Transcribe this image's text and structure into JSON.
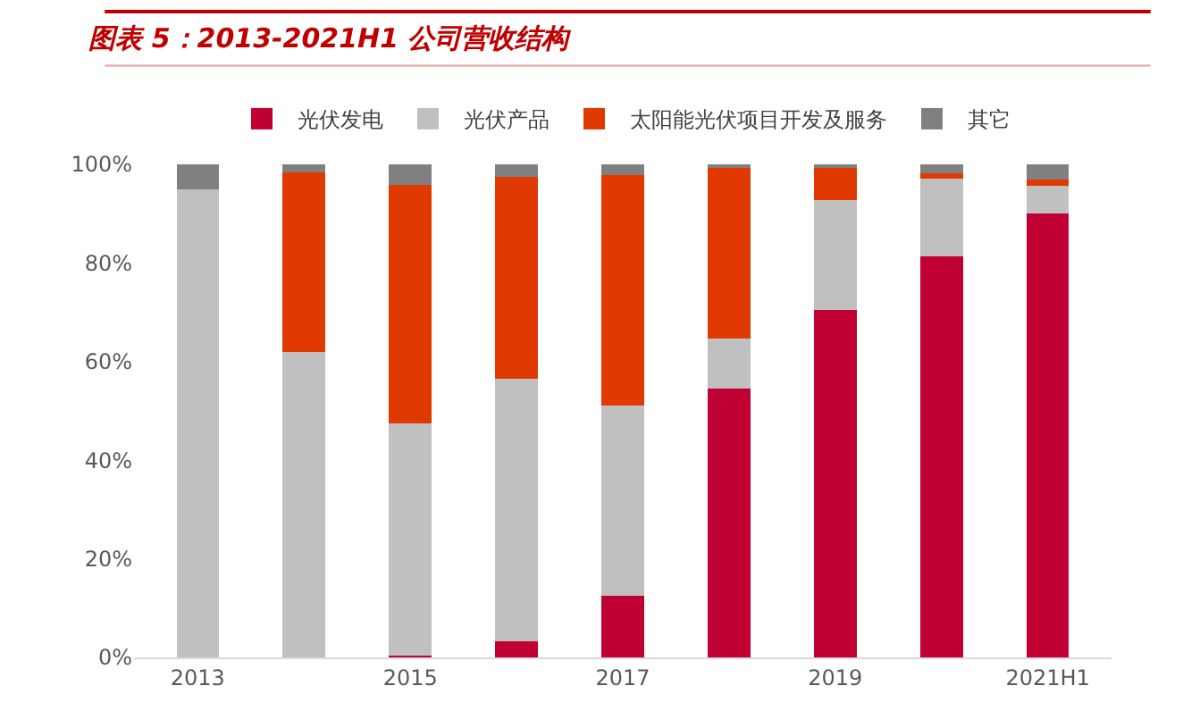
{
  "chart_data": {
    "type": "bar",
    "title": "图表 5：2013-2021H1 公司营收结构",
    "stacked": true,
    "legend": "top",
    "categories": [
      "2013",
      null,
      "2015",
      null,
      "2017",
      null,
      "2019",
      null,
      "2021H1"
    ],
    "ylim": [
      0,
      100
    ],
    "yticks": [
      {
        "value": 0,
        "label": "0%"
      },
      {
        "value": 20,
        "label": "20%"
      },
      {
        "value": 40,
        "label": "40%"
      },
      {
        "value": 60,
        "label": "60%"
      },
      {
        "value": 80,
        "label": "80%"
      },
      {
        "value": 100,
        "label": "100%"
      }
    ],
    "series": [
      {
        "name": "光伏发电",
        "color": "#c00033",
        "values": [
          0,
          0,
          0.3,
          3.2,
          12.5,
          54.6,
          70.5,
          81.3,
          90
        ]
      },
      {
        "name": "光伏产品",
        "color": "#c0c0c0",
        "values": [
          95,
          62,
          47.2,
          53.4,
          38.5,
          10,
          22.3,
          15.8,
          5.6
        ]
      },
      {
        "name": "太阳能光伏项目开发及服务",
        "color": "#e03a00",
        "values": [
          0,
          36.3,
          48.3,
          40.9,
          46.8,
          34.9,
          6.4,
          1.1,
          1.3
        ]
      },
      {
        "name": "其它",
        "color": "#808080",
        "values": [
          5,
          1.7,
          4.2,
          2.5,
          2.2,
          0.5,
          0.8,
          1.8,
          3.1
        ]
      }
    ]
  }
}
